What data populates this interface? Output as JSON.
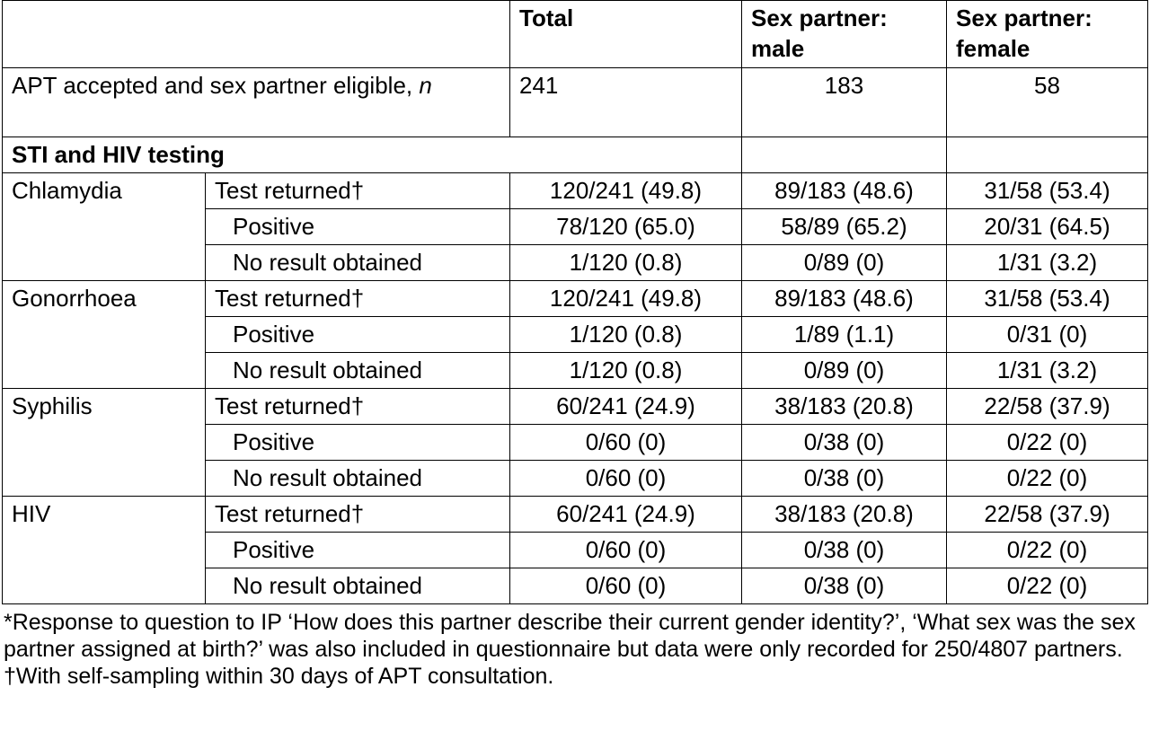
{
  "header": {
    "total": "Total",
    "male": "Sex partner: male",
    "female": "Sex partner: female"
  },
  "eligible": {
    "label": "APT accepted and sex partner eligible,",
    "label_n": "n",
    "total": "241",
    "male": "183",
    "female": "58"
  },
  "section_title": "STI and HIV testing",
  "groups": [
    {
      "name": "Chlamydia",
      "rows": [
        {
          "label": "Test returned†",
          "total": "120/241 (49.8)",
          "male": "89/183 (48.6)",
          "female": "31/58 (53.4)"
        },
        {
          "label": "Positive",
          "total": "78/120 (65.0)",
          "male": "58/89 (65.2)",
          "female": "20/31 (64.5)"
        },
        {
          "label": "No result obtained",
          "total": "1/120 (0.8)",
          "male": "0/89 (0)",
          "female": "1/31 (3.2)"
        }
      ]
    },
    {
      "name": "Gonorrhoea",
      "rows": [
        {
          "label": "Test returned†",
          "total": "120/241 (49.8)",
          "male": "89/183 (48.6)",
          "female": "31/58 (53.4)"
        },
        {
          "label": "Positive",
          "total": "1/120 (0.8)",
          "male": "1/89 (1.1)",
          "female": "0/31 (0)"
        },
        {
          "label": "No result obtained",
          "total": "1/120 (0.8)",
          "male": "0/89 (0)",
          "female": "1/31 (3.2)"
        }
      ]
    },
    {
      "name": "Syphilis",
      "rows": [
        {
          "label": "Test returned†",
          "total": "60/241 (24.9)",
          "male": "38/183 (20.8)",
          "female": "22/58 (37.9)"
        },
        {
          "label": "Positive",
          "total": "0/60 (0)",
          "male": "0/38 (0)",
          "female": "0/22 (0)"
        },
        {
          "label": "No result obtained",
          "total": "0/60 (0)",
          "male": "0/38 (0)",
          "female": "0/22 (0)"
        }
      ]
    },
    {
      "name": "HIV",
      "rows": [
        {
          "label": "Test returned†",
          "total": "60/241 (24.9)",
          "male": "38/183 (20.8)",
          "female": "22/58 (37.9)"
        },
        {
          "label": "Positive",
          "total": "0/60 (0)",
          "male": "0/38 (0)",
          "female": "0/22 (0)"
        },
        {
          "label": "No result obtained",
          "total": "0/60 (0)",
          "male": "0/38 (0)",
          "female": "0/22 (0)"
        }
      ]
    }
  ],
  "footnote": "*Response to question to IP ‘How does this partner describe their current gender identity?’, ‘What sex was the sex partner assigned at birth?’ was also included in questionnaire but data were only recorded for 250/4807 partners. †With self-sampling within 30 days of APT consultation."
}
